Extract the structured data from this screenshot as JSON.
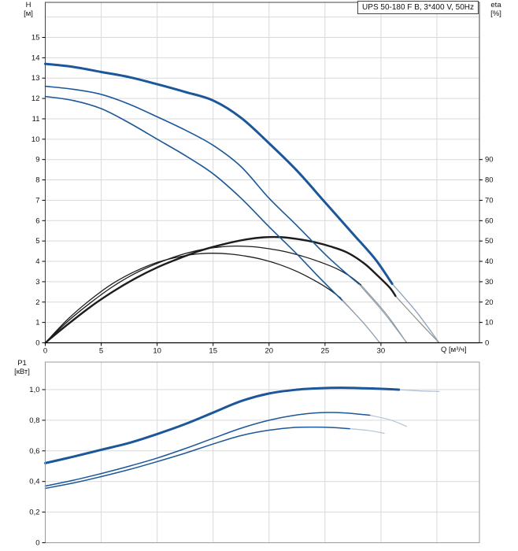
{
  "title_box": {
    "text": "UPS 50-180 F B, 3*400 V, 50Hz"
  },
  "colors": {
    "blue": "#1c5799",
    "black": "#1c1c1c",
    "tail_blue": "#8da1b6",
    "tail_gray": "#909090",
    "tail_light": "#b4c4d6",
    "grid": "#d9d9d9",
    "frame_dark": "#444444",
    "frame_light": "#999999",
    "axis": "#000000",
    "text": "#111111"
  },
  "chart_data": [
    {
      "type": "line",
      "name": "head-efficiency-chart",
      "x": {
        "label": "Q [м³/ч]",
        "min": 0,
        "max": 38.8,
        "ticks": [
          {
            "v": 0,
            "label": "0"
          },
          {
            "v": 5,
            "label": "5"
          },
          {
            "v": 10,
            "label": "10"
          },
          {
            "v": 15,
            "label": "15"
          },
          {
            "v": 20,
            "label": "20"
          },
          {
            "v": 25,
            "label": "25"
          },
          {
            "v": 30,
            "label": "30"
          }
        ],
        "grid": [
          5,
          10,
          15,
          20,
          25,
          30,
          35
        ]
      },
      "yLeft": {
        "label1": "H",
        "label2": "[м]",
        "min": 0,
        "max": 16.72,
        "ticks": [
          {
            "v": 0,
            "label": "0"
          },
          {
            "v": 1,
            "label": "1"
          },
          {
            "v": 2,
            "label": "2"
          },
          {
            "v": 3,
            "label": "3"
          },
          {
            "v": 4,
            "label": "4"
          },
          {
            "v": 5,
            "label": "5"
          },
          {
            "v": 6,
            "label": "6"
          },
          {
            "v": 7,
            "label": "7"
          },
          {
            "v": 8,
            "label": "8"
          },
          {
            "v": 9,
            "label": "9"
          },
          {
            "v": 10,
            "label": "10"
          },
          {
            "v": 11,
            "label": "11"
          },
          {
            "v": 12,
            "label": "12"
          },
          {
            "v": 13,
            "label": "13"
          },
          {
            "v": 14,
            "label": "14"
          },
          {
            "v": 15,
            "label": "15"
          }
        ],
        "grid": [
          1,
          2,
          3,
          4,
          5,
          6,
          7,
          8,
          9,
          10,
          11,
          12,
          13,
          14,
          15,
          16
        ]
      },
      "yRight": {
        "label1": "eta",
        "label2": "[%]",
        "scale": 0.1,
        "ticks": [
          {
            "v": 0,
            "label": "0"
          },
          {
            "v": 10,
            "label": "10"
          },
          {
            "v": 20,
            "label": "20"
          },
          {
            "v": 30,
            "label": "30"
          },
          {
            "v": 40,
            "label": "40"
          },
          {
            "v": 50,
            "label": "50"
          },
          {
            "v": 60,
            "label": "60"
          },
          {
            "v": 70,
            "label": "70"
          },
          {
            "v": 80,
            "label": "80"
          },
          {
            "v": 90,
            "label": "90"
          }
        ]
      },
      "series": [
        {
          "name": "eta-speed-1",
          "axis": "right",
          "color": "black",
          "width": 1.3,
          "points": [
            [
              0,
              0
            ],
            [
              2,
              11.5
            ],
            [
              4,
              21
            ],
            [
              6,
              29
            ],
            [
              8,
              35
            ],
            [
              10,
              39.5
            ],
            [
              12,
              42.3
            ],
            [
              13.5,
              43.6
            ],
            [
              15,
              44
            ],
            [
              16.5,
              43.6
            ],
            [
              18,
              42.5
            ],
            [
              19.5,
              40.8
            ],
            [
              21,
              38.3
            ],
            [
              22.5,
              35
            ],
            [
              24,
              30.8
            ],
            [
              25.3,
              26.5
            ],
            [
              26.4,
              22
            ]
          ],
          "tail": {
            "color": "tail_gray",
            "width": 1.1,
            "points": [
              [
                26.4,
                22
              ],
              [
                28.4,
                10
              ],
              [
                29.9,
                0
              ]
            ]
          }
        },
        {
          "name": "eta-speed-2",
          "axis": "right",
          "color": "black",
          "width": 1.3,
          "points": [
            [
              0,
              0
            ],
            [
              2,
              10.5
            ],
            [
              4,
              19.5
            ],
            [
              6,
              27.5
            ],
            [
              8,
              34
            ],
            [
              10,
              39
            ],
            [
              12,
              43
            ],
            [
              14,
              45.8
            ],
            [
              15.5,
              47
            ],
            [
              17,
              47.5
            ],
            [
              18.5,
              47.2
            ],
            [
              20,
              46.2
            ],
            [
              21.5,
              44.7
            ],
            [
              23,
              42.5
            ],
            [
              24.5,
              39.8
            ],
            [
              26,
              36.5
            ],
            [
              27.2,
              32.8
            ],
            [
              28.2,
              28.5
            ]
          ],
          "tail": {
            "color": "tail_gray",
            "width": 1.1,
            "points": [
              [
                28.2,
                28.5
              ],
              [
                30.5,
                14
              ],
              [
                32.3,
                0
              ]
            ]
          }
        },
        {
          "name": "eta-speed-3",
          "axis": "right",
          "color": "black",
          "width": 2.4,
          "points": [
            [
              0,
              0
            ],
            [
              2,
              9
            ],
            [
              4,
              17.5
            ],
            [
              6,
              25
            ],
            [
              8,
              31.5
            ],
            [
              10,
              37
            ],
            [
              12,
              41.5
            ],
            [
              14,
              45.5
            ],
            [
              16,
              48.5
            ],
            [
              18,
              50.8
            ],
            [
              19.5,
              51.8
            ],
            [
              21,
              51.9
            ],
            [
              22.5,
              51
            ],
            [
              24,
              49.5
            ],
            [
              25.5,
              47.3
            ],
            [
              27,
              44.3
            ],
            [
              28.5,
              39
            ],
            [
              29.7,
              33
            ],
            [
              30.8,
              27
            ],
            [
              31.3,
              23
            ]
          ],
          "tail": {
            "color": "tail_gray",
            "width": 1.2,
            "points": [
              [
                31.3,
                23
              ],
              [
                33.3,
                11
              ],
              [
                35.2,
                0
              ]
            ]
          }
        },
        {
          "name": "head-speed-1",
          "axis": "left",
          "color": "blue",
          "width": 1.6,
          "points": [
            [
              0,
              12.1
            ],
            [
              2.5,
              11.9
            ],
            [
              5,
              11.5
            ],
            [
              7.5,
              10.8
            ],
            [
              10,
              10.0
            ],
            [
              12.5,
              9.2
            ],
            [
              15,
              8.3
            ],
            [
              17.5,
              7.1
            ],
            [
              20,
              5.7
            ],
            [
              22.5,
              4.35
            ],
            [
              24.5,
              3.2
            ],
            [
              26.5,
              2.1
            ]
          ],
          "tail": {
            "color": "tail_blue",
            "width": 1.2,
            "points": [
              [
                26.5,
                2.1
              ],
              [
                28.4,
                1.0
              ],
              [
                29.9,
                0
              ]
            ]
          }
        },
        {
          "name": "head-speed-2",
          "axis": "left",
          "color": "blue",
          "width": 1.6,
          "points": [
            [
              0,
              12.6
            ],
            [
              2.5,
              12.45
            ],
            [
              5,
              12.2
            ],
            [
              7.5,
              11.72
            ],
            [
              10,
              11.1
            ],
            [
              12.5,
              10.45
            ],
            [
              15,
              9.7
            ],
            [
              17.5,
              8.65
            ],
            [
              20,
              7.1
            ],
            [
              22.5,
              5.75
            ],
            [
              25,
              4.35
            ],
            [
              26.5,
              3.6
            ],
            [
              28,
              2.9
            ]
          ],
          "tail": {
            "color": "tail_blue",
            "width": 1.2,
            "points": [
              [
                28,
                2.9
              ],
              [
                30.3,
                1.45
              ],
              [
                32.3,
                0
              ]
            ]
          }
        },
        {
          "name": "head-speed-3",
          "axis": "left",
          "color": "blue",
          "width": 3,
          "points": [
            [
              0,
              13.7
            ],
            [
              2.5,
              13.55
            ],
            [
              5,
              13.3
            ],
            [
              7.5,
              13.05
            ],
            [
              10,
              12.7
            ],
            [
              12.5,
              12.32
            ],
            [
              15,
              11.9
            ],
            [
              17.5,
              11.05
            ],
            [
              20,
              9.8
            ],
            [
              22.5,
              8.45
            ],
            [
              25,
              6.9
            ],
            [
              27.5,
              5.35
            ],
            [
              29.5,
              4.1
            ],
            [
              31,
              2.9
            ]
          ],
          "tail": {
            "color": "tail_blue",
            "width": 1.3,
            "points": [
              [
                31,
                2.9
              ],
              [
                33.2,
                1.5
              ],
              [
                35.2,
                0
              ]
            ]
          }
        }
      ]
    },
    {
      "type": "line",
      "name": "power-chart",
      "x": {
        "min": 0,
        "max": 38.8,
        "ticks": [],
        "grid": [
          5,
          10,
          15,
          20,
          25,
          30,
          35
        ]
      },
      "y": {
        "label1": "P1",
        "label2": "[кВт]",
        "min": 0,
        "max": 1.18,
        "ticks": [
          {
            "v": 0,
            "label": "0"
          },
          {
            "v": 0.2,
            "label": "0,2"
          },
          {
            "v": 0.4,
            "label": "0,4"
          },
          {
            "v": 0.6,
            "label": "0,6"
          },
          {
            "v": 0.8,
            "label": "0,8"
          },
          {
            "v": 1.0,
            "label": "1,0"
          }
        ],
        "grid": [
          0.2,
          0.4,
          0.6,
          0.8,
          1.0
        ]
      },
      "series": [
        {
          "name": "power-speed-1",
          "axis": "left",
          "color": "blue",
          "width": 1.5,
          "points": [
            [
              0,
              0.355
            ],
            [
              2.5,
              0.39
            ],
            [
              5,
              0.432
            ],
            [
              7.5,
              0.478
            ],
            [
              10,
              0.53
            ],
            [
              12.5,
              0.585
            ],
            [
              15,
              0.645
            ],
            [
              17.5,
              0.7
            ],
            [
              20,
              0.735
            ],
            [
              22.3,
              0.753
            ],
            [
              24.3,
              0.755
            ],
            [
              25.8,
              0.752
            ],
            [
              27.2,
              0.745
            ]
          ],
          "tail": {
            "color": "tail_light",
            "width": 1.2,
            "points": [
              [
                27.2,
                0.745
              ],
              [
                28.9,
                0.733
              ],
              [
                30.3,
                0.715
              ]
            ]
          }
        },
        {
          "name": "power-speed-2",
          "axis": "left",
          "color": "blue",
          "width": 1.5,
          "points": [
            [
              0,
              0.37
            ],
            [
              2.5,
              0.408
            ],
            [
              5,
              0.452
            ],
            [
              7.5,
              0.5
            ],
            [
              10,
              0.553
            ],
            [
              12.5,
              0.615
            ],
            [
              15,
              0.682
            ],
            [
              17.5,
              0.748
            ],
            [
              20,
              0.8
            ],
            [
              22.5,
              0.835
            ],
            [
              24.8,
              0.85
            ],
            [
              26.8,
              0.848
            ],
            [
              29,
              0.833
            ]
          ],
          "tail": {
            "color": "tail_light",
            "width": 1.2,
            "points": [
              [
                29,
                0.833
              ],
              [
                30.8,
                0.803
              ],
              [
                32.3,
                0.76
              ]
            ]
          }
        },
        {
          "name": "power-speed-3",
          "axis": "left",
          "color": "blue",
          "width": 3,
          "points": [
            [
              0,
              0.52
            ],
            [
              2.5,
              0.562
            ],
            [
              5,
              0.607
            ],
            [
              7.5,
              0.652
            ],
            [
              10,
              0.71
            ],
            [
              12.5,
              0.775
            ],
            [
              15,
              0.85
            ],
            [
              17.5,
              0.925
            ],
            [
              20,
              0.975
            ],
            [
              22.5,
              1.0
            ],
            [
              24.5,
              1.009
            ],
            [
              26.5,
              1.012
            ],
            [
              28.5,
              1.009
            ],
            [
              30.5,
              1.004
            ],
            [
              31.6,
              1.0
            ]
          ],
          "tail": {
            "color": "tail_light",
            "width": 1.3,
            "points": [
              [
                31.6,
                1.0
              ],
              [
                33.4,
                0.992
              ],
              [
                35.2,
                0.988
              ]
            ]
          }
        }
      ]
    }
  ]
}
